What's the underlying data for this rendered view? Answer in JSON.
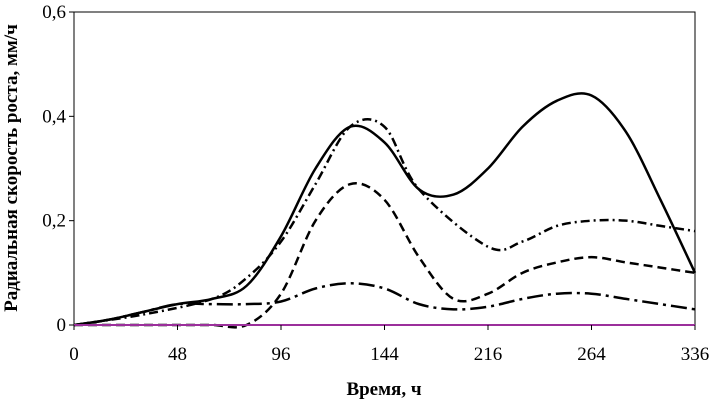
{
  "chart_data": {
    "type": "line",
    "xlabel": "Время, ч",
    "ylabel": "Радиальная скорость роста, мм/ч",
    "x_ticks": [
      "0",
      "48",
      "96",
      "144",
      "216",
      "264",
      "336"
    ],
    "y_ticks": [
      "0",
      "0,2",
      "0,4",
      "0,6"
    ],
    "y_tick_values": [
      0,
      0.2,
      0.4,
      0.6
    ],
    "ylim": [
      0,
      0.6
    ],
    "grid": false,
    "legend": "none",
    "series": [
      {
        "style": "solid",
        "color": "#000000",
        "points": [
          [
            0,
            0
          ],
          [
            1,
            0.01
          ],
          [
            2,
            0.025
          ],
          [
            3,
            0.04
          ],
          [
            4,
            0.05
          ],
          [
            5,
            0.075
          ],
          [
            6,
            0.17
          ],
          [
            7,
            0.3
          ],
          [
            8,
            0.38
          ],
          [
            9,
            0.35
          ],
          [
            10,
            0.26
          ],
          [
            11,
            0.25
          ],
          [
            12,
            0.3
          ],
          [
            13,
            0.38
          ],
          [
            14,
            0.43
          ],
          [
            15,
            0.44
          ],
          [
            16,
            0.37
          ],
          [
            17,
            0.24
          ],
          [
            18,
            0.1
          ]
        ]
      },
      {
        "style": "dash-dot",
        "color": "#000000",
        "points": [
          [
            0,
            0
          ],
          [
            2,
            0.02
          ],
          [
            4,
            0.05
          ],
          [
            5,
            0.09
          ],
          [
            6,
            0.16
          ],
          [
            7,
            0.27
          ],
          [
            8,
            0.38
          ],
          [
            9,
            0.38
          ],
          [
            10,
            0.26
          ],
          [
            12,
            0.15
          ],
          [
            13,
            0.16
          ],
          [
            14,
            0.19
          ],
          [
            15,
            0.2
          ],
          [
            16,
            0.2
          ],
          [
            17,
            0.19
          ],
          [
            18,
            0.18
          ]
        ]
      },
      {
        "style": "dashed",
        "color": "#000000",
        "points": [
          [
            0,
            0
          ],
          [
            1,
            0
          ],
          [
            2,
            0
          ],
          [
            3,
            0
          ],
          [
            4,
            0
          ],
          [
            5,
            0
          ],
          [
            6,
            0.06
          ],
          [
            7,
            0.2
          ],
          [
            8,
            0.27
          ],
          [
            9,
            0.24
          ],
          [
            10,
            0.13
          ],
          [
            11,
            0.05
          ],
          [
            12,
            0.06
          ],
          [
            13,
            0.1
          ],
          [
            14,
            0.12
          ],
          [
            15,
            0.13
          ],
          [
            16,
            0.12
          ],
          [
            17,
            0.11
          ],
          [
            18,
            0.1
          ]
        ]
      },
      {
        "style": "long-dash-dot",
        "color": "#000000",
        "points": [
          [
            0,
            0
          ],
          [
            1,
            0.01
          ],
          [
            2,
            0.025
          ],
          [
            3,
            0.04
          ],
          [
            4,
            0.04
          ],
          [
            5,
            0.04
          ],
          [
            6,
            0.045
          ],
          [
            7,
            0.07
          ],
          [
            8,
            0.08
          ],
          [
            9,
            0.07
          ],
          [
            10,
            0.04
          ],
          [
            11,
            0.03
          ],
          [
            12,
            0.035
          ],
          [
            13,
            0.05
          ],
          [
            14,
            0.06
          ],
          [
            15,
            0.06
          ],
          [
            16,
            0.05
          ],
          [
            17,
            0.04
          ],
          [
            18,
            0.03
          ]
        ]
      },
      {
        "style": "solid",
        "color": "#9b2f9b",
        "points": [
          [
            0,
            0
          ],
          [
            18,
            0
          ]
        ]
      }
    ]
  }
}
